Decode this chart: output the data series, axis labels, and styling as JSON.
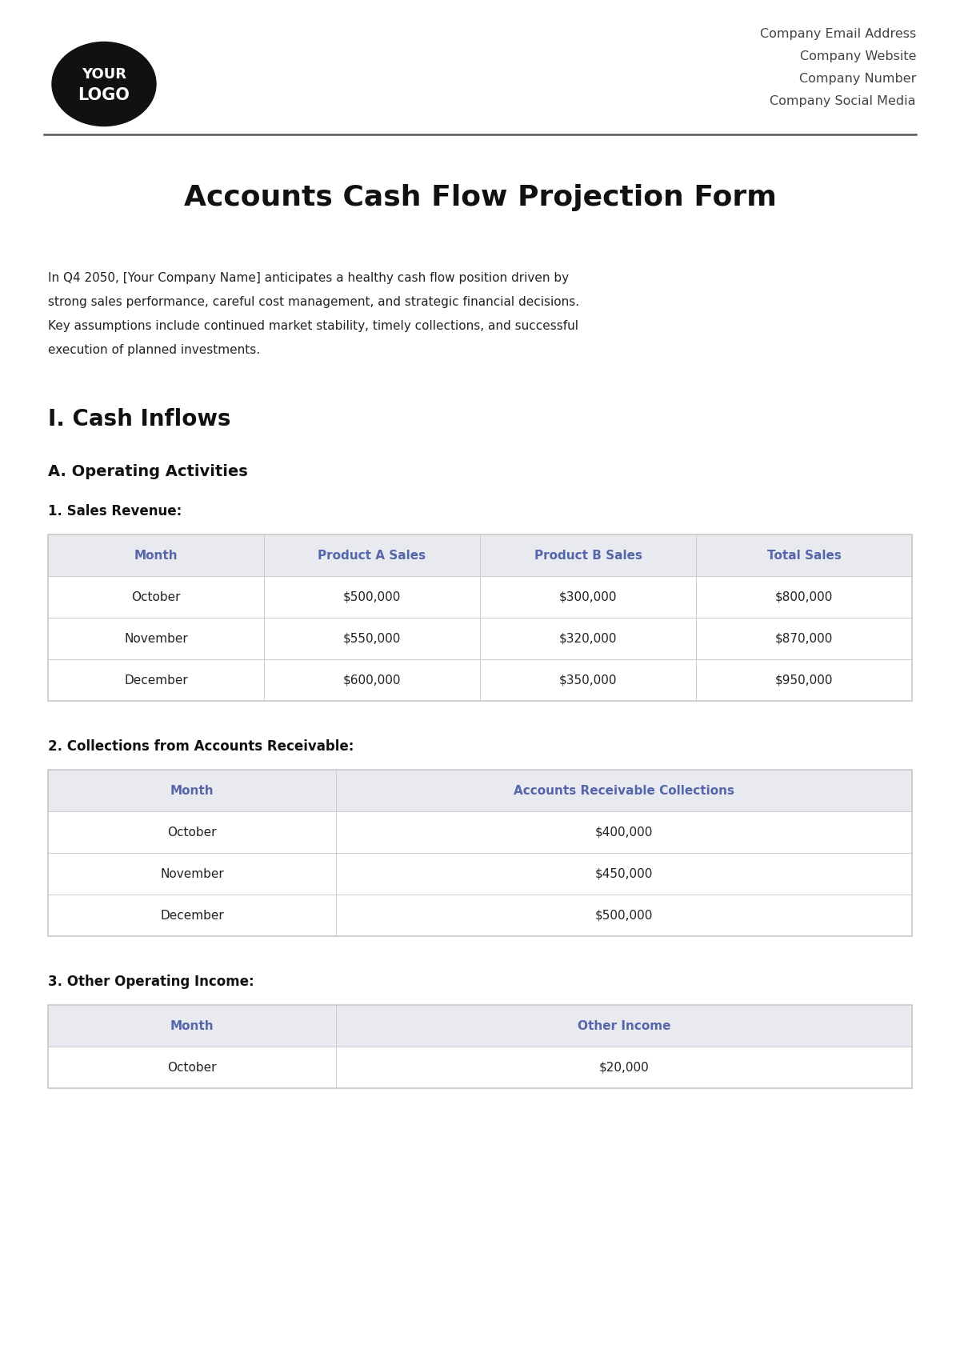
{
  "page_bg": "#ffffff",
  "header": {
    "logo_text_line1": "YOUR",
    "logo_text_line2": "LOGO",
    "logo_bg": "#111111",
    "logo_text_color": "#ffffff",
    "company_lines": [
      "Company Email Address",
      "Company Website",
      "Company Number",
      "Company Social Media"
    ],
    "company_text_color": "#444444"
  },
  "title": "Accounts Cash Flow Projection Form",
  "intro_text": "In Q4 2050, [Your Company Name] anticipates a healthy cash flow position driven by\nstrong sales performance, careful cost management, and strategic financial decisions.\nKey assumptions include continued market stability, timely collections, and successful\nexecution of planned investments.",
  "section1_title": "I. Cash Inflows",
  "section1a_title": "A. Operating Activities",
  "subsection1_title": "1. Sales Revenue:",
  "table1_headers": [
    "Month",
    "Product A Sales",
    "Product B Sales",
    "Total Sales"
  ],
  "table1_data": [
    [
      "October",
      "$500,000",
      "$300,000",
      "$800,000"
    ],
    [
      "November",
      "$550,000",
      "$320,000",
      "$870,000"
    ],
    [
      "December",
      "$600,000",
      "$350,000",
      "$950,000"
    ]
  ],
  "subsection2_title": "2. Collections from Accounts Receivable:",
  "table2_headers": [
    "Month",
    "Accounts Receivable Collections"
  ],
  "table2_data": [
    [
      "October",
      "$400,000"
    ],
    [
      "November",
      "$450,000"
    ],
    [
      "December",
      "$500,000"
    ]
  ],
  "subsection3_title": "3. Other Operating Income:",
  "table3_headers": [
    "Month",
    "Other Income"
  ],
  "table3_data": [
    [
      "October",
      "$20,000"
    ]
  ],
  "table_header_bg": "#e8eaf0",
  "table_row_bg": "#ffffff",
  "table_border_color": "#cccccc",
  "table_header_text_color": "#5566aa",
  "table_data_text_color": "#222222"
}
